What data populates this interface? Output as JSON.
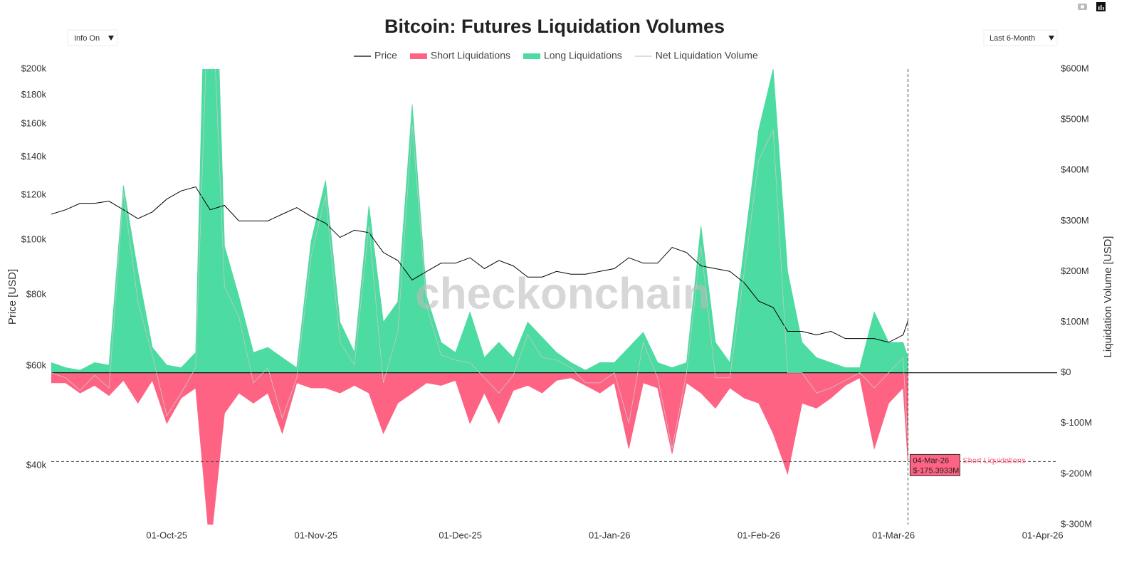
{
  "chart_data": {
    "type": "liquidation-combo",
    "title": "Bitcoin: Futures Liquidation Volumes",
    "controls": {
      "info": "Info On",
      "range": "Last 6-Month"
    },
    "watermark": "checkonchain",
    "y_label": "Price [USD]",
    "y2_label": "Liquidation Volume [USD]",
    "y_log": true,
    "xlim": [
      "2025-09-07",
      "2026-04-04"
    ],
    "xticks": [
      {
        "value": "2025-10-01",
        "label": "01-Oct-25"
      },
      {
        "value": "2025-11-01",
        "label": "01-Nov-25"
      },
      {
        "value": "2025-12-01",
        "label": "01-Dec-25"
      },
      {
        "value": "2026-01-01",
        "label": "01-Jan-26"
      },
      {
        "value": "2026-02-01",
        "label": "01-Feb-26"
      },
      {
        "value": "2026-03-01",
        "label": "01-Mar-26"
      },
      {
        "value": "2026-04-01",
        "label": "01-Apr-26"
      }
    ],
    "ylim": [
      31500,
      200000
    ],
    "yticks": [
      {
        "value": 40000,
        "label": "$40k"
      },
      {
        "value": 60000,
        "label": "$60k"
      },
      {
        "value": 80000,
        "label": "$80k"
      },
      {
        "value": 100000,
        "label": "$100k"
      },
      {
        "value": 120000,
        "label": "$120k"
      },
      {
        "value": 140000,
        "label": "$140k"
      },
      {
        "value": 160000,
        "label": "$160k"
      },
      {
        "value": 180000,
        "label": "$180k"
      },
      {
        "value": 200000,
        "label": "$200k"
      }
    ],
    "y2lim": [
      -300,
      600
    ],
    "y2ticks": [
      {
        "value": -300,
        "label": "$-300M"
      },
      {
        "value": -200,
        "label": "$-200M"
      },
      {
        "value": -100,
        "label": "$-100M"
      },
      {
        "value": 0,
        "label": "$0"
      },
      {
        "value": 100,
        "label": "$100M"
      },
      {
        "value": 200,
        "label": "$200M"
      },
      {
        "value": 300,
        "label": "$300M"
      },
      {
        "value": 400,
        "label": "$400M"
      },
      {
        "value": 500,
        "label": "$500M"
      },
      {
        "value": 600,
        "label": "$600M"
      }
    ],
    "x": [
      "2025-09-07",
      "2025-09-10",
      "2025-09-13",
      "2025-09-16",
      "2025-09-19",
      "2025-09-22",
      "2025-09-25",
      "2025-09-28",
      "2025-10-01",
      "2025-10-04",
      "2025-10-07",
      "2025-10-10",
      "2025-10-13",
      "2025-10-16",
      "2025-10-19",
      "2025-10-22",
      "2025-10-25",
      "2025-10-28",
      "2025-10-31",
      "2025-11-03",
      "2025-11-06",
      "2025-11-09",
      "2025-11-12",
      "2025-11-15",
      "2025-11-18",
      "2025-11-21",
      "2025-11-24",
      "2025-11-27",
      "2025-11-30",
      "2025-12-03",
      "2025-12-06",
      "2025-12-09",
      "2025-12-12",
      "2025-12-15",
      "2025-12-18",
      "2025-12-21",
      "2025-12-24",
      "2025-12-27",
      "2025-12-30",
      "2026-01-02",
      "2026-01-05",
      "2026-01-08",
      "2026-01-11",
      "2026-01-14",
      "2026-01-17",
      "2026-01-20",
      "2026-01-23",
      "2026-01-26",
      "2026-01-29",
      "2026-02-01",
      "2026-02-04",
      "2026-02-07",
      "2026-02-10",
      "2026-02-13",
      "2026-02-16",
      "2026-02-19",
      "2026-02-22",
      "2026-02-25",
      "2026-02-28",
      "2026-03-03",
      "2026-03-04"
    ],
    "series": [
      {
        "name": "Price",
        "type": "line",
        "color": "#000000",
        "values": [
          111000,
          113000,
          116000,
          116000,
          117000,
          113000,
          109000,
          112000,
          118000,
          122000,
          124000,
          113000,
          115000,
          108000,
          108000,
          108000,
          111000,
          114000,
          110000,
          107000,
          101000,
          104000,
          103000,
          95000,
          92000,
          85000,
          88000,
          91000,
          91000,
          93000,
          89000,
          92000,
          90000,
          86000,
          86000,
          88000,
          87000,
          87000,
          88000,
          89000,
          93000,
          91000,
          91000,
          97000,
          95000,
          90000,
          89000,
          88000,
          84000,
          78000,
          76000,
          69000,
          69000,
          68000,
          69000,
          67000,
          67000,
          67000,
          66000,
          68000,
          72000
        ]
      },
      {
        "name": "Short Liquidations",
        "type": "area",
        "axis": "y2",
        "color": "#ff6384",
        "values": [
          -20,
          -20,
          -40,
          -25,
          -45,
          -15,
          -60,
          -15,
          -100,
          -50,
          -30,
          -350,
          -80,
          -40,
          -60,
          -40,
          -120,
          -20,
          -30,
          -30,
          -40,
          -25,
          -40,
          -120,
          -60,
          -40,
          -20,
          -25,
          -15,
          -100,
          -40,
          -100,
          -35,
          -25,
          -40,
          -15,
          -10,
          -25,
          -40,
          -20,
          -150,
          -20,
          -30,
          -160,
          -20,
          -40,
          -70,
          -30,
          -50,
          -60,
          -120,
          -200,
          -60,
          -70,
          -50,
          -25,
          -10,
          -150,
          -60,
          -30,
          -175.3933
        ]
      },
      {
        "name": "Long Liquidations",
        "type": "area",
        "axis": "y2",
        "color": "#4cdba0",
        "values": [
          20,
          10,
          5,
          20,
          15,
          370,
          200,
          50,
          15,
          10,
          40,
          1200,
          250,
          150,
          40,
          50,
          30,
          10,
          260,
          380,
          100,
          40,
          330,
          100,
          140,
          530,
          150,
          60,
          40,
          120,
          30,
          60,
          30,
          100,
          70,
          40,
          20,
          5,
          20,
          20,
          50,
          80,
          20,
          10,
          20,
          290,
          60,
          20,
          250,
          480,
          600,
          200,
          60,
          30,
          20,
          10,
          10,
          120,
          60,
          60,
          30
        ]
      },
      {
        "name": "Net Liquidation Volume",
        "type": "line",
        "axis": "y2",
        "color": "#c8c8c8",
        "values": [
          0,
          -10,
          -35,
          -5,
          -30,
          355,
          140,
          35,
          -85,
          -40,
          10,
          850,
          170,
          110,
          -20,
          10,
          -90,
          -10,
          230,
          350,
          60,
          15,
          290,
          -20,
          80,
          490,
          130,
          35,
          25,
          20,
          -10,
          -40,
          -5,
          75,
          30,
          25,
          10,
          -20,
          -20,
          0,
          -100,
          60,
          -10,
          -150,
          0,
          250,
          -10,
          -10,
          200,
          420,
          480,
          0,
          0,
          -40,
          -30,
          -15,
          0,
          -30,
          0,
          30,
          -145.3933
        ]
      }
    ],
    "tooltip": {
      "date": "04-Mar-26",
      "value_label": "$-175.3933M"
    }
  }
}
